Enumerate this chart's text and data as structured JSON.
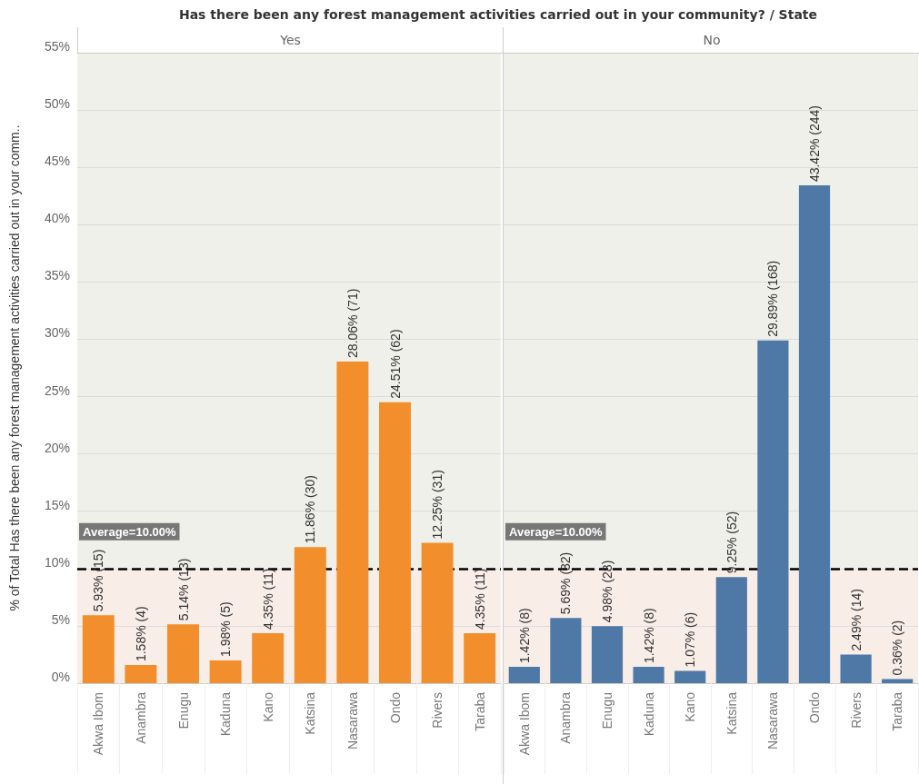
{
  "chart_data": [
    {
      "type": "bar",
      "title": "Has there been any forest management activities carried out in your community? / State",
      "subtitle": "Yes",
      "ylabel": "% of Total Has there been any forest management activities carried out in your comm..",
      "categories": [
        "Akwa Ibom",
        "Anambra",
        "Enugu",
        "Kaduna",
        "Kano",
        "Katsina",
        "Nasarawa",
        "Ondo",
        "Rivers",
        "Taraba"
      ],
      "values": [
        5.93,
        1.58,
        5.14,
        1.98,
        4.35,
        11.86,
        28.06,
        24.51,
        12.25,
        4.35
      ],
      "value_labels": [
        "5.93% (15)",
        "1.58% (4)",
        "5.14% (13)",
        "1.98% (5)",
        "4.35% (11)",
        "11.86% (30)",
        "28.06% (71)",
        "24.51% (62)",
        "12.25% (31)",
        "4.35% (11)"
      ],
      "color": "#f28e2b",
      "ylim": [
        0,
        55
      ],
      "yticks": [
        {
          "value": 0,
          "label": "0%"
        },
        {
          "value": 5,
          "label": "5%"
        },
        {
          "value": 10,
          "label": "10%"
        },
        {
          "value": 15,
          "label": "15%"
        },
        {
          "value": 20,
          "label": "20%"
        },
        {
          "value": 25,
          "label": "25%"
        },
        {
          "value": 30,
          "label": "30%"
        },
        {
          "value": 35,
          "label": "35%"
        },
        {
          "value": 40,
          "label": "40%"
        },
        {
          "value": 45,
          "label": "45%"
        },
        {
          "value": 50,
          "label": "50%"
        },
        {
          "value": 55,
          "label": "55%"
        }
      ],
      "grid": "y",
      "ref_lines": [
        {
          "axis": "y",
          "value": 10,
          "label": "Average=10.00%",
          "color": "#000000",
          "line_style": "dashed"
        }
      ],
      "bands": [
        {
          "axis": "y",
          "from": 0,
          "to": 10,
          "color": "#f9ede8"
        },
        {
          "axis": "y",
          "from": 10,
          "to": 55,
          "color": "#eff0e9"
        }
      ]
    },
    {
      "type": "bar",
      "subtitle": "No",
      "categories": [
        "Akwa Ibom",
        "Anambra",
        "Enugu",
        "Kaduna",
        "Kano",
        "Katsina",
        "Nasarawa",
        "Ondo",
        "Rivers",
        "Taraba"
      ],
      "values": [
        1.42,
        5.69,
        4.98,
        1.42,
        1.07,
        9.25,
        29.89,
        43.42,
        2.49,
        0.36
      ],
      "value_labels": [
        "1.42% (8)",
        "5.69% (32)",
        "4.98% (28)",
        "1.42% (8)",
        "1.07% (6)",
        "9.25% (52)",
        "29.89% (168)",
        "43.42% (244)",
        "2.49% (14)",
        "0.36% (2)"
      ],
      "color": "#4e79a7",
      "ylim": [
        0,
        55
      ],
      "yticks": [
        0,
        5,
        10,
        15,
        20,
        25,
        30,
        35,
        40,
        45,
        50,
        55
      ],
      "grid": "y",
      "tick_labels": "x",
      "ref_lines": [
        {
          "axis": "y",
          "value": 10,
          "label": "Average=10.00%",
          "color": "#000000",
          "line_style": "dashed"
        }
      ],
      "bands": [
        {
          "axis": "y",
          "from": 0,
          "to": 10,
          "color": "#f9ede8"
        },
        {
          "axis": "y",
          "from": 10,
          "to": 55,
          "color": "#eff0e9"
        }
      ]
    }
  ]
}
